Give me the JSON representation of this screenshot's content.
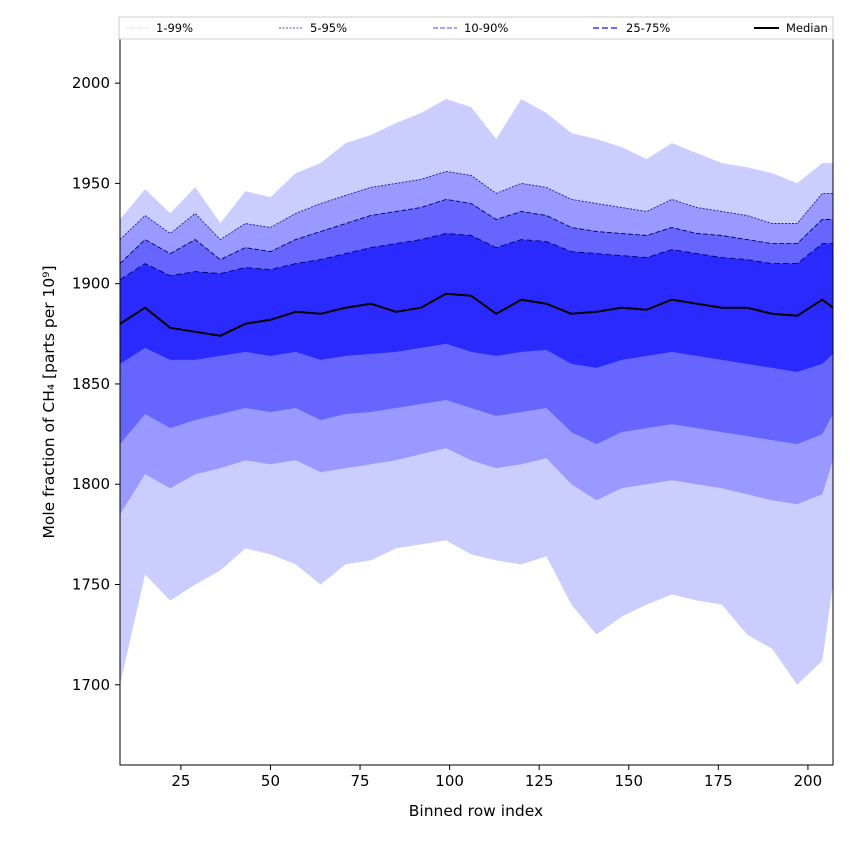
{
  "chart_data": {
    "type": "area",
    "title": "",
    "xlabel": "Binned row index",
    "ylabel": "Mole fraction of CH₄ [parts per 10⁹]",
    "xlim": [
      8,
      207
    ],
    "ylim": [
      1660,
      2022
    ],
    "x_ticks": [
      25,
      50,
      75,
      100,
      125,
      150,
      175,
      200
    ],
    "y_ticks": [
      1700,
      1750,
      1800,
      1850,
      1900,
      1950,
      2000
    ],
    "grid": false,
    "legend_position": "top",
    "legend": [
      "1-99%",
      "5-95%",
      "10-90%",
      "25-75%",
      "Median"
    ],
    "x": [
      8,
      15,
      22,
      29,
      36,
      43,
      50,
      57,
      64,
      71,
      78,
      85,
      92,
      99,
      106,
      113,
      120,
      127,
      134,
      141,
      148,
      155,
      162,
      169,
      176,
      183,
      190,
      197,
      204,
      207
    ],
    "bands": [
      {
        "name": "1-99%",
        "fill": "#cccdff",
        "edge": "#c8c8ff",
        "dash": "1,1",
        "lower": [
          1700,
          1755,
          1742,
          1750,
          1757,
          1768,
          1765,
          1760,
          1750,
          1760,
          1762,
          1768,
          1770,
          1772,
          1765,
          1762,
          1760,
          1764,
          1740,
          1725,
          1734,
          1740,
          1745,
          1742,
          1740,
          1725,
          1718,
          1700,
          1712,
          1750
        ],
        "upper": [
          1932,
          1947,
          1935,
          1948,
          1930,
          1946,
          1943,
          1955,
          1960,
          1970,
          1974,
          1980,
          1985,
          1992,
          1988,
          1972,
          1992,
          1985,
          1975,
          1972,
          1968,
          1962,
          1970,
          1965,
          1960,
          1958,
          1955,
          1950,
          1960,
          1960
        ]
      },
      {
        "name": "5-95%",
        "fill": "#9999ff",
        "edge": "#1a1a8c",
        "dash": "2,1.5",
        "lower": [
          1785,
          1805,
          1798,
          1805,
          1808,
          1812,
          1810,
          1812,
          1806,
          1808,
          1810,
          1812,
          1815,
          1818,
          1812,
          1808,
          1810,
          1813,
          1800,
          1792,
          1798,
          1800,
          1802,
          1800,
          1798,
          1795,
          1792,
          1790,
          1795,
          1812
        ],
        "upper": [
          1922,
          1934,
          1925,
          1935,
          1922,
          1930,
          1928,
          1935,
          1940,
          1944,
          1948,
          1950,
          1952,
          1956,
          1954,
          1945,
          1950,
          1948,
          1942,
          1940,
          1938,
          1936,
          1942,
          1938,
          1936,
          1934,
          1930,
          1930,
          1945,
          1945
        ]
      },
      {
        "name": "10-90%",
        "fill": "#6666ff",
        "edge": "#00006e",
        "dash": "5,2",
        "lower": [
          1820,
          1835,
          1828,
          1832,
          1835,
          1838,
          1836,
          1838,
          1832,
          1835,
          1836,
          1838,
          1840,
          1842,
          1838,
          1834,
          1836,
          1838,
          1826,
          1820,
          1826,
          1828,
          1830,
          1828,
          1826,
          1824,
          1822,
          1820,
          1825,
          1835
        ]
      },
      {
        "name": "25-75%",
        "fill": "#2a2aff",
        "edge": "#00007a",
        "dash": "6,3",
        "lower": [
          1860,
          1868,
          1862,
          1862,
          1864,
          1866,
          1864,
          1866,
          1862,
          1864,
          1865,
          1866,
          1868,
          1870,
          1866,
          1864,
          1866,
          1867,
          1860,
          1858,
          1862,
          1864,
          1866,
          1864,
          1862,
          1860,
          1858,
          1856,
          1860,
          1865
        ],
        "upper": [
          1902,
          1910,
          1904,
          1906,
          1905,
          1908,
          1907,
          1910,
          1912,
          1915,
          1918,
          1920,
          1922,
          1925,
          1924,
          1918,
          1922,
          1921,
          1916,
          1915,
          1914,
          1913,
          1917,
          1915,
          1913,
          1912,
          1910,
          1910,
          1920,
          1920
        ]
      }
    ],
    "band_10_90_upper": [
      1910,
      1922,
      1915,
      1922,
      1912,
      1918,
      1916,
      1922,
      1926,
      1930,
      1934,
      1936,
      1938,
      1942,
      1940,
      1932,
      1936,
      1934,
      1928,
      1926,
      1925,
      1924,
      1928,
      1925,
      1924,
      1922,
      1920,
      1920,
      1932,
      1932
    ],
    "series": [
      {
        "name": "Median",
        "color": "#000000",
        "values": [
          1880,
          1888,
          1878,
          1876,
          1874,
          1880,
          1882,
          1886,
          1885,
          1888,
          1890,
          1886,
          1888,
          1895,
          1894,
          1885,
          1892,
          1890,
          1885,
          1886,
          1888,
          1887,
          1892,
          1890,
          1888,
          1888,
          1885,
          1884,
          1892,
          1888
        ]
      }
    ]
  }
}
